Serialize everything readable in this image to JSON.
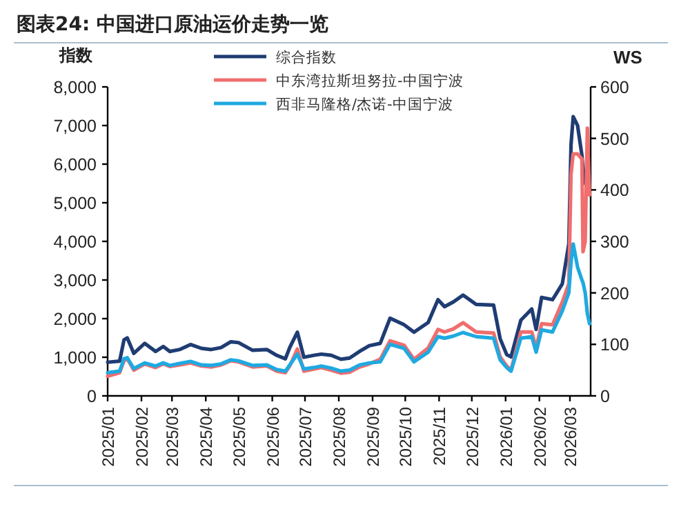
{
  "chart_data": {
    "type": "line",
    "title": "图表24:  中国进口原油运价走势一览",
    "ylabel": "指数",
    "y2label": "WS",
    "legend": "top",
    "line_style": "solid",
    "x": [
      "2025-01-01",
      "2025-01-12",
      "2025-01-16",
      "2025-01-19",
      "2025-01-25",
      "2025-02-04",
      "2025-02-14",
      "2025-02-21",
      "2025-02-27",
      "2025-03-08",
      "2025-03-18",
      "2025-03-28",
      "2025-04-06",
      "2025-04-15",
      "2025-04-24",
      "2025-05-01",
      "2025-05-14",
      "2025-05-27",
      "2025-06-05",
      "2025-06-13",
      "2025-06-17",
      "2025-06-24",
      "2025-06-30",
      "2025-07-09",
      "2025-07-16",
      "2025-07-25",
      "2025-08-03",
      "2025-08-11",
      "2025-08-20",
      "2025-08-29",
      "2025-09-08",
      "2025-09-17",
      "2025-09-30",
      "2025-10-09",
      "2025-10-22",
      "2025-10-31",
      "2025-11-06",
      "2025-11-14",
      "2025-11-23",
      "2025-12-05",
      "2025-12-21",
      "2025-12-27",
      "2026-01-02",
      "2026-01-06",
      "2026-01-15",
      "2026-01-25",
      "2026-01-29",
      "2026-02-03",
      "2026-02-13",
      "2026-02-22",
      "2026-02-28",
      "2026-03-02",
      "2026-03-04",
      "2026-03-08",
      "2026-03-12",
      "2026-03-13",
      "2026-03-15",
      "2026-03-17",
      "2026-03-19"
    ],
    "series": [
      {
        "name": "综合指数",
        "color": "#1f3c73",
        "values": [
          870,
          900,
          1450,
          1500,
          1100,
          1360,
          1150,
          1280,
          1150,
          1200,
          1330,
          1230,
          1200,
          1250,
          1400,
          1380,
          1180,
          1200,
          1050,
          960,
          1250,
          1650,
          1000,
          1050,
          1080,
          1050,
          950,
          980,
          1150,
          1300,
          1360,
          2010,
          1840,
          1650,
          1900,
          2490,
          2310,
          2430,
          2610,
          2370,
          2350,
          1480,
          1070,
          1010,
          1960,
          2250,
          1720,
          2550,
          2490,
          2900,
          3940,
          6500,
          7230,
          7000,
          6230,
          5900,
          5500,
          null,
          null
        ]
      },
      {
        "name": "中东湾拉斯坦努拉-中国宁波",
        "color": "#f06e6e",
        "axis": "y2",
        "values": [
          38,
          45,
          68,
          72,
          50,
          62,
          55,
          62,
          57,
          60,
          64,
          58,
          56,
          60,
          68,
          66,
          56,
          58,
          48,
          45,
          58,
          91,
          48,
          52,
          55,
          50,
          44,
          46,
          56,
          62,
          71,
          107,
          98,
          71,
          93,
          129,
          124,
          130,
          142,
          124,
          122,
          76,
          58,
          50,
          124,
          124,
          93,
          140,
          138,
          182,
          218,
          430,
          470,
          470,
          460,
          280,
          300,
          520,
          390
        ]
      },
      {
        "name": "西非马隆格/杰诺-中国宁波",
        "color": "#1fa9e1",
        "axis": "y2",
        "values": [
          45,
          48,
          72,
          74,
          53,
          64,
          58,
          64,
          59,
          63,
          67,
          60,
          59,
          62,
          70,
          68,
          59,
          60,
          51,
          48,
          60,
          81,
          52,
          55,
          58,
          54,
          48,
          50,
          60,
          64,
          66,
          100,
          92,
          66,
          85,
          115,
          112,
          116,
          123,
          115,
          112,
          70,
          55,
          48,
          112,
          115,
          85,
          128,
          124,
          165,
          200,
          260,
          295,
          250,
          225,
          220,
          200,
          160,
          140
        ]
      }
    ],
    "xlim": [
      "2025-01-01",
      "2026-03-20"
    ],
    "xticks": [
      {
        "value": "2025-01-01",
        "label": "2025/01"
      },
      {
        "value": "2025-02-01",
        "label": "2025/02"
      },
      {
        "value": "2025-03-01",
        "label": "2025/03"
      },
      {
        "value": "2025-04-01",
        "label": "2025/04"
      },
      {
        "value": "2025-05-01",
        "label": "2025/05"
      },
      {
        "value": "2025-06-01",
        "label": "2025/06"
      },
      {
        "value": "2025-07-01",
        "label": "2025/07"
      },
      {
        "value": "2025-08-01",
        "label": "2025/08"
      },
      {
        "value": "2025-09-01",
        "label": "2025/09"
      },
      {
        "value": "2025-10-01",
        "label": "2025/10"
      },
      {
        "value": "2025-11-01",
        "label": "2025/11"
      },
      {
        "value": "2025-12-01",
        "label": "2025/12"
      },
      {
        "value": "2026-01-01",
        "label": "2026/01"
      },
      {
        "value": "2026-02-01",
        "label": "2026/02"
      },
      {
        "value": "2026-03-01",
        "label": "2026/03"
      }
    ],
    "ylim": [
      0,
      8000
    ],
    "yticks": [
      0,
      {
        "value": 1000,
        "label": "1,000"
      },
      {
        "value": 2000,
        "label": "2,000"
      },
      {
        "value": 3000,
        "label": "3,000"
      },
      {
        "value": 4000,
        "label": "4,000"
      },
      {
        "value": 5000,
        "label": "5,000"
      },
      {
        "value": 6000,
        "label": "6,000"
      },
      {
        "value": 7000,
        "label": "7,000"
      },
      {
        "value": 8000,
        "label": "8,000"
      }
    ],
    "y2lim": [
      0,
      600
    ],
    "y2ticks": [
      0,
      100,
      200,
      300,
      400,
      500,
      600
    ]
  }
}
